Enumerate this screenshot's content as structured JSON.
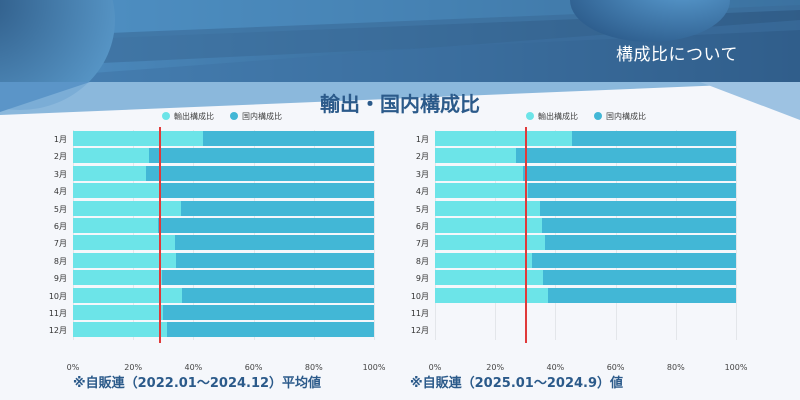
{
  "header": {
    "section_title": "構成比について"
  },
  "main_title": "輸出・国内構成比",
  "colors": {
    "export": "#6ce4e8",
    "domestic": "#42b7d6",
    "reference_line": "#e03a3a",
    "title": "#2b5a8a"
  },
  "left_chart": {
    "legend": [
      "輸出構成比",
      "国内構成比"
    ],
    "months": [
      "1月",
      "2月",
      "3月",
      "4月",
      "5月",
      "6月",
      "7月",
      "8月",
      "9月",
      "10月",
      "11月",
      "12月"
    ],
    "x_ticks": [
      "0%",
      "20%",
      "40%",
      "60%",
      "80%",
      "100%"
    ],
    "note": "※自販連（2022.01～2024.12）平均値"
  },
  "right_chart": {
    "legend": [
      "輸出構成比",
      "国内構成比"
    ],
    "months": [
      "1月",
      "2月",
      "3月",
      "4月",
      "5月",
      "6月",
      "7月",
      "8月",
      "9月",
      "10月",
      "11月",
      "12月"
    ],
    "x_ticks": [
      "0%",
      "20%",
      "40%",
      "60%",
      "80%",
      "100%"
    ],
    "note": "※自販連（2025.01～2024.9）値"
  },
  "chart_data": [
    {
      "type": "bar",
      "orientation": "horizontal",
      "stacked": true,
      "percent": true,
      "title": "輸出・国内構成比 (2022.01～2024.12 平均値)",
      "categories": [
        "1月",
        "2月",
        "3月",
        "4月",
        "5月",
        "6月",
        "7月",
        "8月",
        "9月",
        "10月",
        "11月",
        "12月"
      ],
      "series": [
        {
          "name": "輸出構成比",
          "values": [
            43.2,
            25.2,
            24.3,
            29.2,
            35.9,
            28.2,
            33.9,
            34.2,
            29.6,
            36.2,
            29.9,
            31.2
          ]
        },
        {
          "name": "国内構成比",
          "values": [
            56.8,
            74.8,
            75.7,
            70.8,
            64.1,
            71.8,
            66.1,
            65.8,
            70.4,
            63.8,
            70.1,
            68.8
          ]
        }
      ],
      "reference_line": 28.9,
      "xlim": [
        0,
        100
      ],
      "x_ticks": [
        "0%",
        "20%",
        "40%",
        "60%",
        "80%",
        "100%"
      ],
      "legend_position": "top",
      "grid": true
    },
    {
      "type": "bar",
      "orientation": "horizontal",
      "stacked": true,
      "percent": true,
      "title": "輸出・国内構成比 (2025.01～2024.9 値)",
      "categories": [
        "1月",
        "2月",
        "3月",
        "4月",
        "5月",
        "6月",
        "7月",
        "8月",
        "9月",
        "10月",
        "11月",
        "12月"
      ],
      "series": [
        {
          "name": "輸出構成比",
          "values": [
            45.4,
            27.0,
            29.4,
            30.8,
            34.8,
            35.4,
            36.4,
            32.1,
            35.8,
            37.5,
            null,
            null
          ]
        },
        {
          "name": "国内構成比",
          "values": [
            54.6,
            73.0,
            70.6,
            69.2,
            65.2,
            64.6,
            63.6,
            67.9,
            64.2,
            62.5,
            null,
            null
          ]
        }
      ],
      "reference_line": 30.1,
      "xlim": [
        0,
        100
      ],
      "x_ticks": [
        "0%",
        "20%",
        "40%",
        "60%",
        "80%",
        "100%"
      ],
      "legend_position": "top",
      "grid": true
    }
  ]
}
